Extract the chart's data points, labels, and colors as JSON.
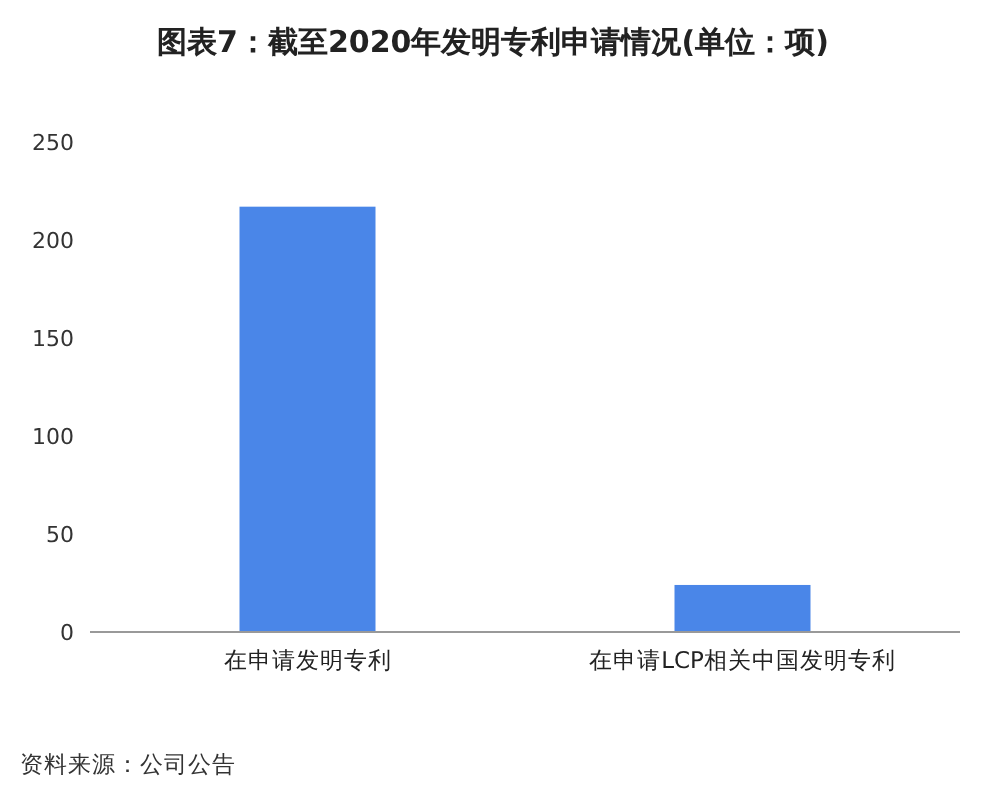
{
  "chart_data": {
    "type": "bar",
    "title": "图表7：截至2020年发明专利申请情况(单位：项)",
    "categories": [
      "在申请发明专利",
      "在申请LCP相关中国发明专利"
    ],
    "values": [
      217,
      24
    ],
    "color": "#4a86e8",
    "ylim": [
      0,
      250
    ],
    "yticks": [
      0,
      50,
      100,
      150,
      200,
      250
    ],
    "grid": false,
    "annotations": [
      "资料来源：公司公告"
    ]
  }
}
